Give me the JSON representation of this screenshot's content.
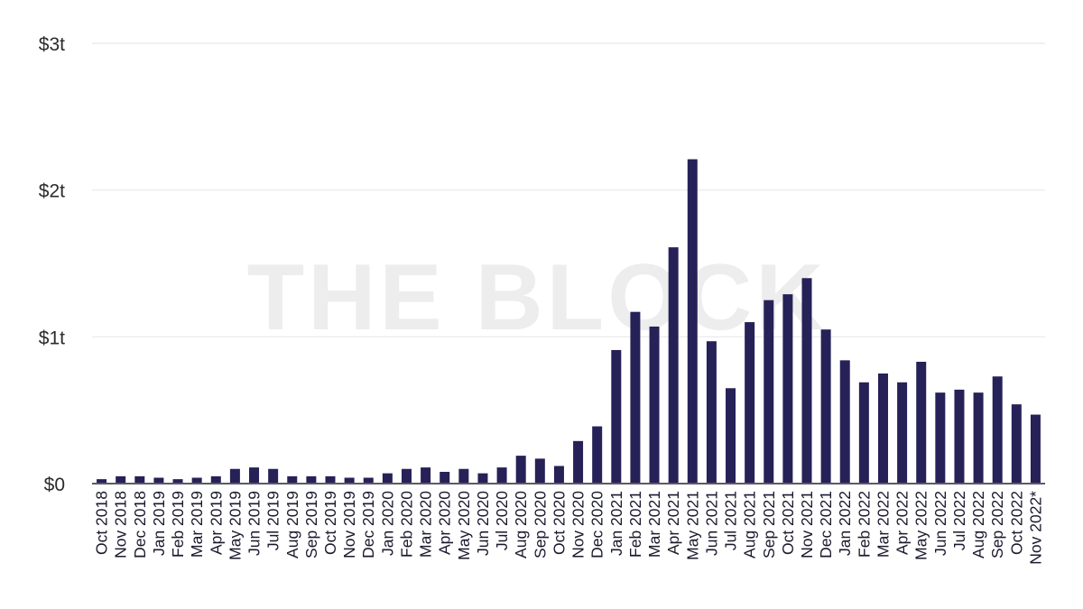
{
  "watermark": "THE BLOCK",
  "colors": {
    "bar": "#262157",
    "grid": "#e8e8ee",
    "axis_text": "#2b2b2b"
  },
  "chart_data": {
    "type": "bar",
    "title": "",
    "xlabel": "",
    "ylabel": "",
    "ylim": [
      0,
      3
    ],
    "y_unit": "trillion USD",
    "y_ticks": [
      {
        "value": 0,
        "label": "$0"
      },
      {
        "value": 1,
        "label": "$1t"
      },
      {
        "value": 2,
        "label": "$2t"
      },
      {
        "value": 3,
        "label": "$3t"
      }
    ],
    "grid": true,
    "categories": [
      "Oct 2018",
      "Nov 2018",
      "Dec 2018",
      "Jan 2019",
      "Feb 2019",
      "Mar 2019",
      "Apr 2019",
      "May 2019",
      "Jun 2019",
      "Jul 2019",
      "Aug 2019",
      "Sep 2019",
      "Oct 2019",
      "Nov 2019",
      "Dec 2019",
      "Jan 2020",
      "Feb 2020",
      "Mar 2020",
      "Apr 2020",
      "May 2020",
      "Jun 2020",
      "Jul 2020",
      "Aug 2020",
      "Sep 2020",
      "Oct 2020",
      "Nov 2020",
      "Dec 2020",
      "Jan 2021",
      "Feb 2021",
      "Mar 2021",
      "Apr 2021",
      "May 2021",
      "Jun 2021",
      "Jul 2021",
      "Aug 2021",
      "Sep 2021",
      "Oct 2021",
      "Nov 2021",
      "Dec 2021",
      "Jan 2022",
      "Feb 2022",
      "Mar 2022",
      "Apr 2022",
      "May 2022",
      "Jun 2022",
      "Jul 2022",
      "Aug 2022",
      "Sep 2022",
      "Oct 2022",
      "Nov 2022*"
    ],
    "values": [
      0.03,
      0.05,
      0.05,
      0.04,
      0.03,
      0.04,
      0.05,
      0.1,
      0.11,
      0.1,
      0.05,
      0.05,
      0.05,
      0.04,
      0.04,
      0.07,
      0.1,
      0.11,
      0.08,
      0.1,
      0.07,
      0.11,
      0.19,
      0.17,
      0.12,
      0.29,
      0.39,
      0.91,
      1.17,
      1.07,
      1.61,
      2.21,
      0.97,
      0.65,
      1.1,
      1.25,
      1.29,
      1.4,
      1.05,
      0.84,
      0.69,
      0.75,
      0.69,
      0.83,
      0.62,
      0.64,
      0.62,
      0.73,
      0.54,
      0.47
    ]
  }
}
